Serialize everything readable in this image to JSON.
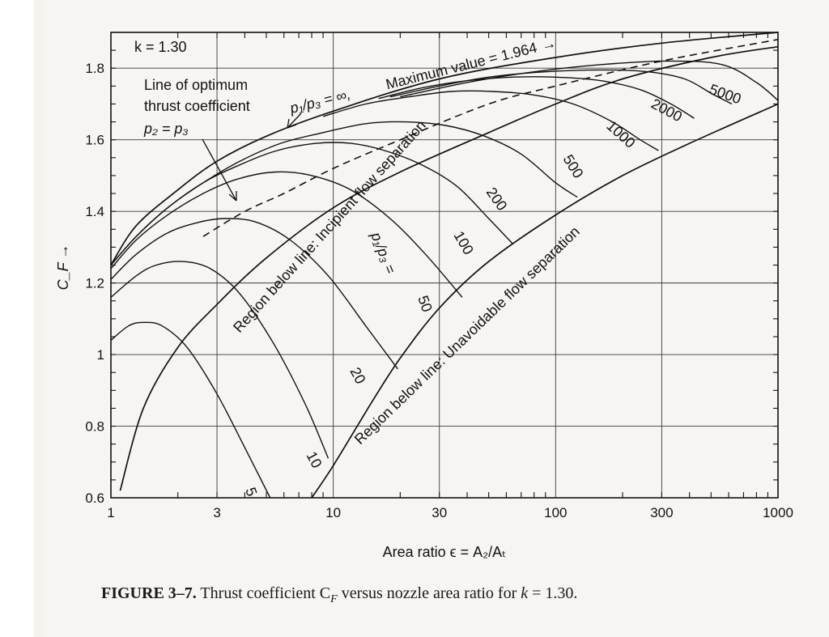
{
  "chart_data": {
    "type": "line",
    "title": "k = 1.30",
    "xlabel": "Area ratio ϵ = A₂/Aₜ",
    "ylabel": "C_F →",
    "xscale": "log",
    "xlim": [
      1,
      1000
    ],
    "ylim": [
      0.6,
      1.9
    ],
    "grid": true,
    "xticks": [
      1,
      3,
      10,
      30,
      100,
      300,
      1000
    ],
    "xtick_labels": [
      "1",
      "3",
      "10",
      "30",
      "100",
      "300",
      "1000"
    ],
    "yticks": [
      0.6,
      0.8,
      1.0,
      1.2,
      1.4,
      1.6,
      1.8
    ],
    "ytick_labels": [
      "0.6",
      "0.8",
      "1",
      "1.2",
      "1.4",
      "1.6",
      "1.8"
    ],
    "series": [
      {
        "name": "5",
        "x": [
          1,
          1.2,
          1.4,
          1.7,
          2.2,
          3,
          4,
          5.2
        ],
        "y": [
          1.04,
          1.08,
          1.09,
          1.08,
          1.02,
          0.89,
          0.74,
          0.6
        ]
      },
      {
        "name": "10",
        "x": [
          1,
          1.3,
          1.6,
          2.1,
          2.8,
          3.8,
          5.4,
          7.5,
          9.5
        ],
        "y": [
          1.16,
          1.22,
          1.25,
          1.26,
          1.24,
          1.17,
          1.03,
          0.86,
          0.71
        ]
      },
      {
        "name": "20",
        "x": [
          1,
          1.3,
          1.8,
          2.5,
          3.3,
          4.5,
          6.4,
          9.5,
          14,
          19.5
        ],
        "y": [
          1.21,
          1.28,
          1.34,
          1.37,
          1.38,
          1.37,
          1.32,
          1.22,
          1.08,
          0.96
        ]
      },
      {
        "name": "50",
        "x": [
          1,
          1.3,
          1.8,
          2.6,
          3.7,
          5.5,
          8,
          12,
          18,
          26,
          38
        ],
        "y": [
          1.24,
          1.32,
          1.39,
          1.45,
          1.49,
          1.51,
          1.5,
          1.46,
          1.38,
          1.28,
          1.16
        ]
      },
      {
        "name": "100",
        "x": [
          1,
          1.3,
          1.8,
          2.6,
          3.8,
          5.6,
          8.4,
          12,
          17,
          25,
          36,
          50,
          64
        ],
        "y": [
          1.25,
          1.33,
          1.41,
          1.48,
          1.53,
          1.57,
          1.59,
          1.59,
          1.57,
          1.53,
          1.47,
          1.38,
          1.31
        ]
      },
      {
        "name": "200",
        "x": [
          1,
          1.3,
          1.8,
          2.6,
          3.8,
          5.8,
          9,
          14,
          21,
          32,
          48,
          70,
          100,
          125
        ],
        "y": [
          1.25,
          1.33,
          1.41,
          1.48,
          1.54,
          1.59,
          1.62,
          1.645,
          1.65,
          1.64,
          1.61,
          1.56,
          1.48,
          1.44
        ]
      },
      {
        "name": "500",
        "x": [
          9,
          14,
          22,
          34,
          52,
          80,
          120,
          180,
          240,
          290
        ],
        "y": [
          1.665,
          1.7,
          1.72,
          1.735,
          1.735,
          1.725,
          1.7,
          1.65,
          1.6,
          1.57
        ]
      },
      {
        "name": "1000",
        "x": [
          16,
          25,
          40,
          64,
          100,
          160,
          240,
          330,
          420
        ],
        "y": [
          1.715,
          1.745,
          1.765,
          1.775,
          1.775,
          1.765,
          1.74,
          1.7,
          1.66
        ]
      },
      {
        "name": "2000",
        "x": [
          18,
          30,
          50,
          90,
          160,
          260,
          380,
          500,
          620
        ],
        "y": [
          1.72,
          1.75,
          1.775,
          1.79,
          1.795,
          1.79,
          1.77,
          1.73,
          1.7
        ]
      },
      {
        "name": "5000",
        "x": [
          20,
          40,
          80,
          160,
          320,
          560,
          800,
          1000
        ],
        "y": [
          1.72,
          1.76,
          1.79,
          1.81,
          1.82,
          1.81,
          1.76,
          1.71
        ]
      },
      {
        "name": "p1/p3 = ∞",
        "x": [
          1,
          1.3,
          2,
          3,
          5,
          10,
          30,
          100,
          300,
          1000
        ],
        "y": [
          1.25,
          1.36,
          1.46,
          1.54,
          1.61,
          1.68,
          1.77,
          1.83,
          1.87,
          1.9
        ]
      },
      {
        "name": "Line of optimum thrust coefficient p2 = p3",
        "style": "dashed",
        "x": [
          2.6,
          4,
          6,
          10,
          20,
          50,
          100,
          300,
          1000
        ],
        "y": [
          1.33,
          1.4,
          1.45,
          1.52,
          1.6,
          1.7,
          1.75,
          1.82,
          1.88
        ]
      },
      {
        "name": "Incipient flow separation",
        "x": [
          1.1,
          1.4,
          2,
          3,
          5,
          10,
          20,
          50,
          100,
          200,
          500,
          1000
        ],
        "y": [
          0.62,
          0.85,
          1.02,
          1.14,
          1.27,
          1.41,
          1.51,
          1.62,
          1.7,
          1.77,
          1.83,
          1.86
        ]
      },
      {
        "name": "Unavoidable flow separation",
        "x": [
          8,
          10,
          15,
          20,
          30,
          50,
          100,
          200,
          400,
          1000
        ],
        "y": [
          0.6,
          0.69,
          0.87,
          0.99,
          1.13,
          1.26,
          1.39,
          1.5,
          1.59,
          1.7
        ]
      }
    ],
    "annotations": {
      "k": "k = 1.30",
      "max_value": "Maximum value = 1.964",
      "pinf_prefix": "p₁/p₃ = ∞,",
      "optimum_line1": "Line of optimum",
      "optimum_line2": "thrust coefficient",
      "optimum_line3": "p₂ = p₃",
      "incipient": "Region below line: Incipient flow separation",
      "unavoidable": "Region below line: Unavoidable flow separation",
      "p_ratio": "p₁/p₃ =",
      "arrow_right": "→"
    },
    "curve_labels": [
      "5",
      "10",
      "20",
      "50",
      "100",
      "200",
      "500",
      "1000",
      "2000",
      "5000"
    ]
  },
  "caption": {
    "figure": "FIGURE 3–7.",
    "text": " Thrust coefficient C",
    "sub": "F",
    "rest": " versus nozzle area ratio for ",
    "kvar": "k",
    "kval": " = 1.30."
  }
}
